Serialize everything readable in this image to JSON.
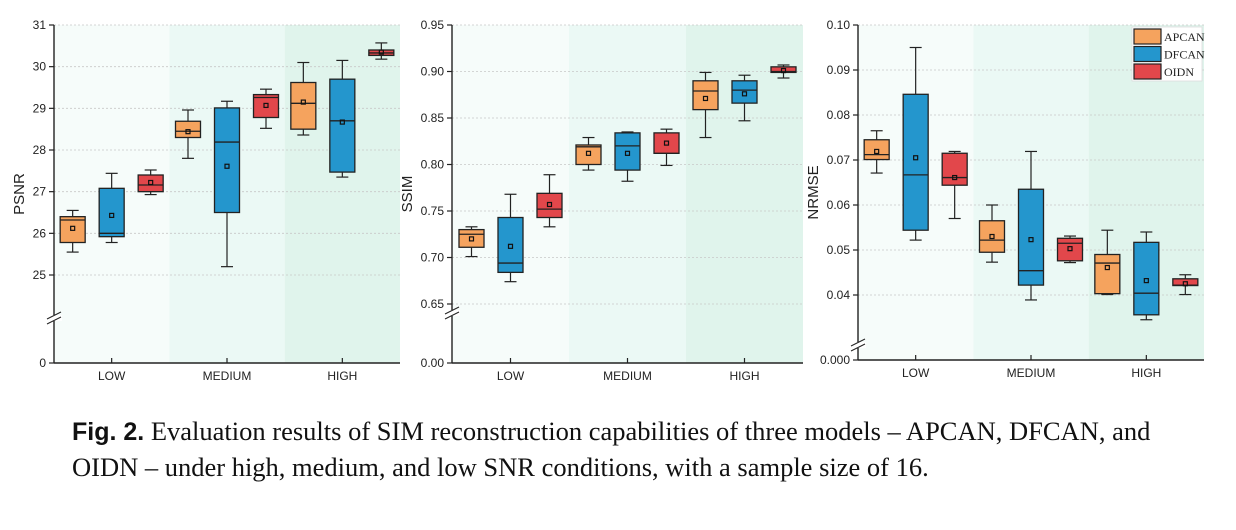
{
  "chart_data": [
    {
      "type": "box",
      "title": "",
      "xlabel": "",
      "ylabel": "PSNR",
      "categories": [
        "LOW",
        "MEDIUM",
        "HIGH"
      ],
      "ylim": [
        25,
        31
      ],
      "axis_break": true,
      "yticks": [
        "31",
        "30",
        "29",
        "28",
        "27",
        "26",
        "25",
        "0"
      ],
      "grid": true,
      "series": [
        {
          "name": "APCAN",
          "color": "#F5A35E",
          "boxes": [
            {
              "whisker_low": 25.55,
              "q1": 25.78,
              "median": 26.32,
              "mean": 26.12,
              "q3": 26.4,
              "whisker_high": 26.55
            },
            {
              "whisker_low": 27.8,
              "q1": 28.3,
              "median": 28.45,
              "mean": 28.44,
              "q3": 28.69,
              "whisker_high": 28.96
            },
            {
              "whisker_low": 28.36,
              "q1": 28.5,
              "median": 29.12,
              "mean": 29.15,
              "q3": 29.62,
              "whisker_high": 30.1
            }
          ]
        },
        {
          "name": "DFCAN",
          "color": "#2496CD",
          "boxes": [
            {
              "whisker_low": 25.78,
              "q1": 25.92,
              "median": 26.0,
              "mean": 26.43,
              "q3": 27.08,
              "whisker_high": 27.44
            },
            {
              "whisker_low": 25.2,
              "q1": 26.5,
              "median": 28.19,
              "mean": 27.61,
              "q3": 29.01,
              "whisker_high": 29.17
            },
            {
              "whisker_low": 27.35,
              "q1": 27.47,
              "median": 28.7,
              "mean": 28.67,
              "q3": 29.7,
              "whisker_high": 30.15
            }
          ]
        },
        {
          "name": "OIDN",
          "color": "#E2474B",
          "boxes": [
            {
              "whisker_low": 26.93,
              "q1": 27.0,
              "median": 27.16,
              "mean": 27.22,
              "q3": 27.4,
              "whisker_high": 27.52
            },
            {
              "whisker_low": 28.52,
              "q1": 28.78,
              "median": 29.26,
              "mean": 29.07,
              "q3": 29.33,
              "whisker_high": 29.46
            },
            {
              "whisker_low": 30.18,
              "q1": 30.27,
              "median": 30.33,
              "mean": 30.35,
              "q3": 30.4,
              "whisker_high": 30.57
            }
          ]
        }
      ]
    },
    {
      "type": "box",
      "title": "",
      "xlabel": "",
      "ylabel": "SSIM",
      "categories": [
        "LOW",
        "MEDIUM",
        "HIGH"
      ],
      "ylim": [
        0.65,
        0.95
      ],
      "axis_break": true,
      "yticks": [
        "0.95",
        "0.90",
        "0.85",
        "0.80",
        "0.75",
        "0.70",
        "0.65",
        "0.00"
      ],
      "grid": true,
      "series": [
        {
          "name": "APCAN",
          "color": "#F5A35E",
          "boxes": [
            {
              "whisker_low": 0.701,
              "q1": 0.711,
              "median": 0.725,
              "mean": 0.72,
              "q3": 0.73,
              "whisker_high": 0.733
            },
            {
              "whisker_low": 0.794,
              "q1": 0.8,
              "median": 0.819,
              "mean": 0.812,
              "q3": 0.821,
              "whisker_high": 0.829
            },
            {
              "whisker_low": 0.829,
              "q1": 0.859,
              "median": 0.879,
              "mean": 0.871,
              "q3": 0.89,
              "whisker_high": 0.899
            }
          ]
        },
        {
          "name": "DFCAN",
          "color": "#2496CD",
          "boxes": [
            {
              "whisker_low": 0.674,
              "q1": 0.684,
              "median": 0.694,
              "mean": 0.712,
              "q3": 0.743,
              "whisker_high": 0.768
            },
            {
              "whisker_low": 0.782,
              "q1": 0.794,
              "median": 0.82,
              "mean": 0.812,
              "q3": 0.834,
              "whisker_high": 0.835
            },
            {
              "whisker_low": 0.847,
              "q1": 0.866,
              "median": 0.88,
              "mean": 0.876,
              "q3": 0.89,
              "whisker_high": 0.896
            }
          ]
        },
        {
          "name": "OIDN",
          "color": "#E2474B",
          "boxes": [
            {
              "whisker_low": 0.733,
              "q1": 0.743,
              "median": 0.752,
              "mean": 0.757,
              "q3": 0.769,
              "whisker_high": 0.789
            },
            {
              "whisker_low": 0.799,
              "q1": 0.812,
              "median": 0.812,
              "mean": 0.823,
              "q3": 0.834,
              "whisker_high": 0.838
            },
            {
              "whisker_low": 0.893,
              "q1": 0.899,
              "median": 0.9,
              "mean": 0.901,
              "q3": 0.905,
              "whisker_high": 0.907
            }
          ]
        }
      ]
    },
    {
      "type": "box",
      "title": "",
      "xlabel": "",
      "ylabel": "NRMSE",
      "categories": [
        "LOW",
        "MEDIUM",
        "HIGH"
      ],
      "ylim": [
        0.03,
        0.1
      ],
      "axis_break": true,
      "yticks": [
        "0.10",
        "0.09",
        "0.08",
        "0.07",
        "0.06",
        "0.05",
        "0.04",
        "0.000"
      ],
      "grid": true,
      "legend": {
        "position": "top-right",
        "entries": [
          "APCAN",
          "DFCAN",
          "OIDN"
        ]
      },
      "series": [
        {
          "name": "APCAN",
          "color": "#F5A35E",
          "boxes": [
            {
              "whisker_low": 0.0671,
              "q1": 0.0701,
              "median": 0.0712,
              "mean": 0.0719,
              "q3": 0.0745,
              "whisker_high": 0.0765
            },
            {
              "whisker_low": 0.0473,
              "q1": 0.0495,
              "median": 0.0522,
              "mean": 0.053,
              "q3": 0.0565,
              "whisker_high": 0.06
            },
            {
              "whisker_low": 0.0401,
              "q1": 0.0403,
              "median": 0.0471,
              "mean": 0.0461,
              "q3": 0.049,
              "whisker_high": 0.0544
            }
          ]
        },
        {
          "name": "DFCAN",
          "color": "#2496CD",
          "boxes": [
            {
              "whisker_low": 0.0522,
              "q1": 0.0544,
              "median": 0.0667,
              "mean": 0.0705,
              "q3": 0.0846,
              "whisker_high": 0.095
            },
            {
              "whisker_low": 0.0389,
              "q1": 0.0422,
              "median": 0.0454,
              "mean": 0.0523,
              "q3": 0.0635,
              "whisker_high": 0.0719
            },
            {
              "whisker_low": 0.0345,
              "q1": 0.0356,
              "median": 0.0404,
              "mean": 0.0432,
              "q3": 0.0517,
              "whisker_high": 0.054
            }
          ]
        },
        {
          "name": "OIDN",
          "color": "#E2474B",
          "boxes": [
            {
              "whisker_low": 0.057,
              "q1": 0.0644,
              "median": 0.0661,
              "mean": 0.0661,
              "q3": 0.0715,
              "whisker_high": 0.0719
            },
            {
              "whisker_low": 0.0472,
              "q1": 0.0476,
              "median": 0.0515,
              "mean": 0.0503,
              "q3": 0.0526,
              "whisker_high": 0.0531
            },
            {
              "whisker_low": 0.0401,
              "q1": 0.0421,
              "median": 0.0422,
              "mean": 0.0425,
              "q3": 0.0436,
              "whisker_high": 0.0445
            }
          ]
        }
      ]
    }
  ],
  "band_colors": [
    "#F6FCFA",
    "#EBF9F5",
    "#E0F4EC"
  ],
  "caption": {
    "label": "Fig. 2.",
    "text": " Evaluation results of SIM reconstruction capabilities of three models – APCAN, DFCAN, and OIDN – under high, medium, and low SNR conditions, with a sample size of 16."
  }
}
